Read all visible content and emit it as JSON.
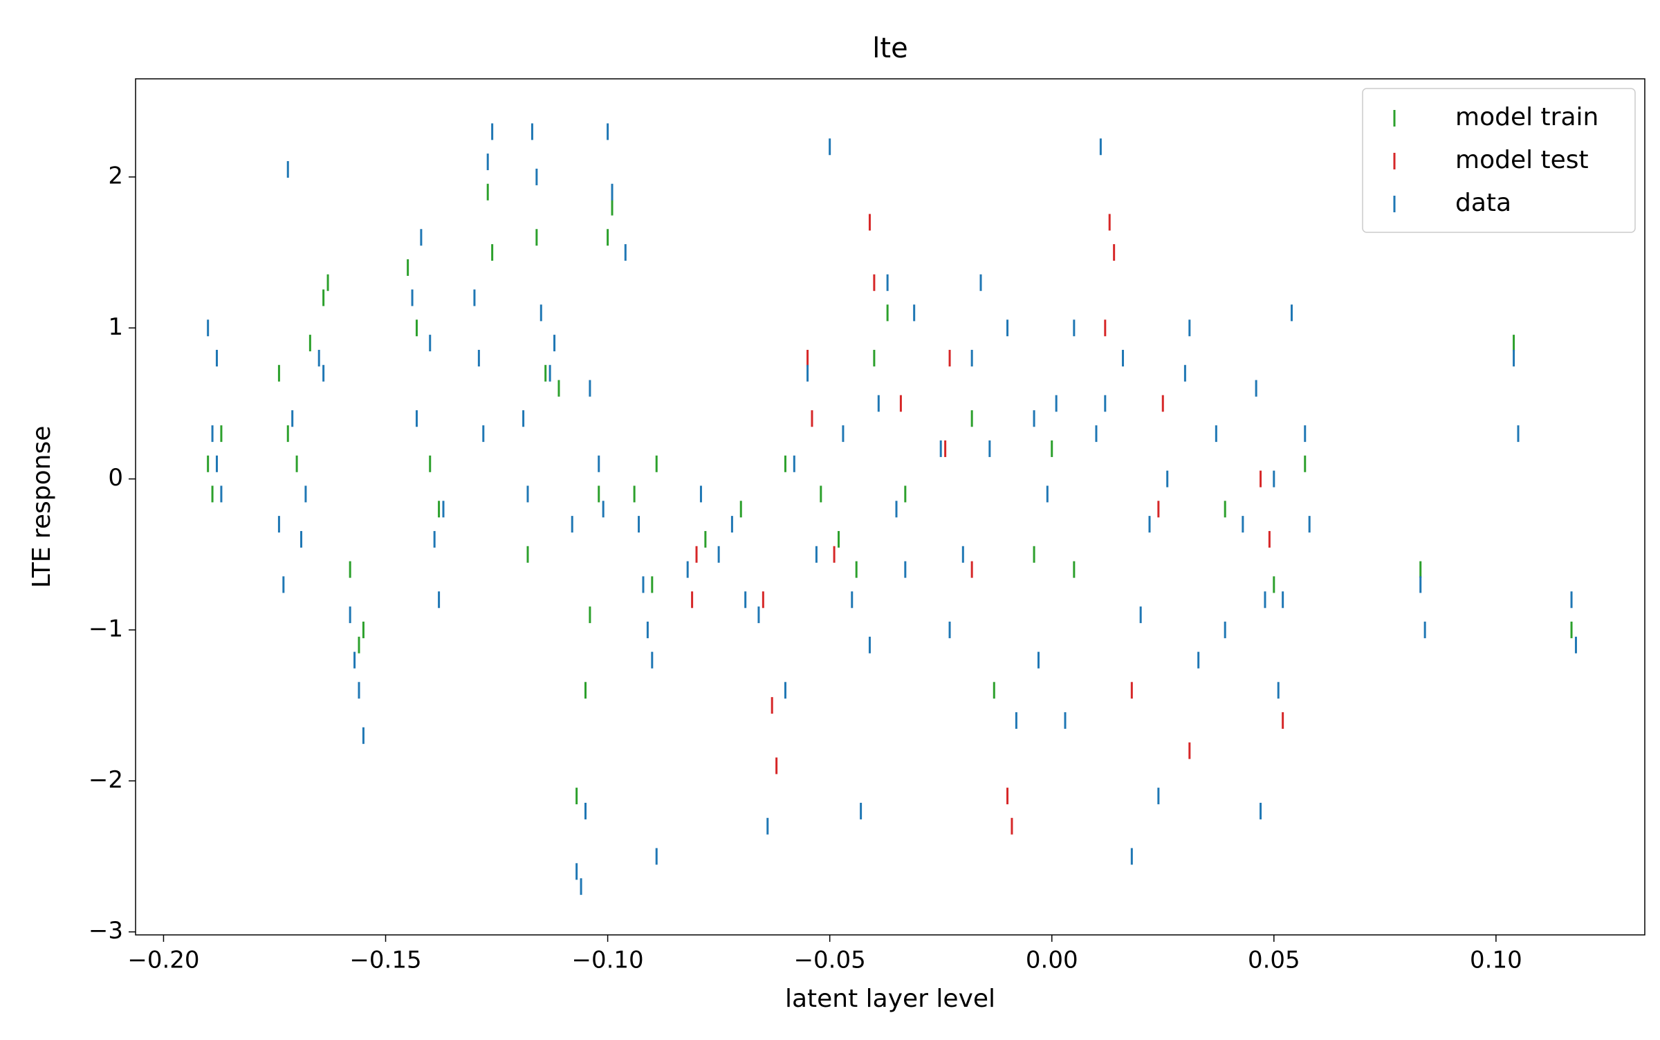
{
  "chart_data": {
    "type": "scatter",
    "title": "lte",
    "x_label": "latent layer level",
    "y_label": "LTE response",
    "xlim": [
      -0.2063,
      0.1335
    ],
    "ylim": [
      -3.02,
      2.65
    ],
    "xticks": [
      {
        "value": -0.2,
        "label": "−0.20"
      },
      {
        "value": -0.15,
        "label": "−0.15"
      },
      {
        "value": -0.1,
        "label": "−0.10"
      },
      {
        "value": -0.05,
        "label": "−0.05"
      },
      {
        "value": 0,
        "label": "0.00"
      },
      {
        "value": 0.05,
        "label": "0.05"
      },
      {
        "value": 0.1,
        "label": "0.10"
      }
    ],
    "yticks": [
      {
        "value": -3,
        "label": "−3"
      },
      {
        "value": -2,
        "label": "−2"
      },
      {
        "value": -1,
        "label": "−1"
      },
      0,
      1,
      2
    ],
    "marker": "vline",
    "legend": "upper right",
    "series": [
      {
        "name": "model train",
        "color": "#2ca02c",
        "x": [
          -0.19,
          -0.189,
          -0.187,
          -0.174,
          -0.172,
          -0.17,
          -0.167,
          -0.164,
          -0.163,
          -0.158,
          -0.156,
          -0.155,
          -0.145,
          -0.143,
          -0.14,
          -0.138,
          -0.127,
          -0.126,
          -0.118,
          -0.116,
          -0.114,
          -0.111,
          -0.107,
          -0.105,
          -0.104,
          -0.102,
          -0.1,
          -0.099,
          -0.094,
          -0.09,
          -0.089,
          -0.078,
          -0.07,
          -0.06,
          -0.052,
          -0.048,
          -0.044,
          -0.04,
          -0.037,
          -0.033,
          -0.018,
          -0.013,
          -0.004,
          0.0,
          0.005,
          0.039,
          0.05,
          0.057,
          0.083,
          0.104,
          0.117
        ],
        "values": [
          0.1,
          -0.1,
          0.3,
          0.7,
          0.3,
          0.1,
          0.9,
          1.2,
          1.3,
          -0.6,
          -1.1,
          -1.0,
          1.4,
          1.0,
          0.1,
          -0.2,
          1.9,
          1.5,
          -0.5,
          1.6,
          0.7,
          0.6,
          -2.1,
          -1.4,
          -0.9,
          -0.1,
          1.6,
          1.8,
          -0.1,
          -0.7,
          0.1,
          -0.4,
          -0.2,
          0.1,
          -0.1,
          -0.4,
          -0.6,
          0.8,
          1.1,
          -0.1,
          0.4,
          -1.4,
          -0.5,
          0.2,
          -0.6,
          -0.2,
          -0.7,
          0.1,
          -0.6,
          0.9,
          -1.0
        ]
      },
      {
        "name": "model test",
        "color": "#d62728",
        "x": [
          -0.081,
          -0.08,
          -0.065,
          -0.063,
          -0.062,
          -0.055,
          -0.054,
          -0.049,
          -0.041,
          -0.04,
          -0.034,
          -0.024,
          -0.023,
          -0.018,
          -0.01,
          -0.009,
          0.012,
          0.013,
          0.014,
          0.018,
          0.024,
          0.025,
          0.031,
          0.047,
          0.049,
          0.052
        ],
        "values": [
          -0.8,
          -0.5,
          -0.8,
          -1.5,
          -1.9,
          0.8,
          0.4,
          -0.5,
          1.7,
          1.3,
          0.5,
          0.2,
          0.8,
          -0.6,
          -2.1,
          -2.3,
          1.0,
          1.7,
          1.5,
          -1.4,
          -0.2,
          0.5,
          -1.8,
          0.0,
          -0.4,
          -1.6
        ]
      },
      {
        "name": "data",
        "color": "#1f77b4",
        "x": [
          -0.19,
          -0.189,
          -0.188,
          -0.188,
          -0.187,
          -0.172,
          -0.174,
          -0.173,
          -0.171,
          -0.169,
          -0.168,
          -0.165,
          -0.164,
          -0.158,
          -0.157,
          -0.156,
          -0.155,
          -0.144,
          -0.143,
          -0.142,
          -0.14,
          -0.139,
          -0.138,
          -0.137,
          -0.13,
          -0.129,
          -0.128,
          -0.127,
          -0.126,
          -0.119,
          -0.118,
          -0.117,
          -0.116,
          -0.115,
          -0.113,
          -0.112,
          -0.108,
          -0.107,
          -0.106,
          -0.105,
          -0.104,
          -0.102,
          -0.101,
          -0.1,
          -0.099,
          -0.096,
          -0.093,
          -0.092,
          -0.091,
          -0.09,
          -0.089,
          -0.082,
          -0.079,
          -0.075,
          -0.072,
          -0.069,
          -0.066,
          -0.064,
          -0.06,
          -0.058,
          -0.055,
          -0.053,
          -0.05,
          -0.047,
          -0.045,
          -0.043,
          -0.041,
          -0.039,
          -0.037,
          -0.035,
          -0.033,
          -0.031,
          -0.025,
          -0.023,
          -0.02,
          -0.018,
          -0.016,
          -0.014,
          -0.01,
          -0.008,
          -0.004,
          -0.003,
          -0.001,
          0.001,
          0.003,
          0.005,
          0.01,
          0.011,
          0.012,
          0.016,
          0.018,
          0.02,
          0.022,
          0.024,
          0.026,
          0.03,
          0.031,
          0.033,
          0.037,
          0.039,
          0.043,
          0.046,
          0.047,
          0.048,
          0.05,
          0.051,
          0.052,
          0.054,
          0.057,
          0.058,
          0.083,
          0.084,
          0.104,
          0.105,
          0.117,
          0.118
        ],
        "values": [
          1.0,
          0.3,
          0.1,
          0.8,
          -0.1,
          2.05,
          -0.3,
          -0.7,
          0.4,
          -0.4,
          -0.1,
          0.8,
          0.7,
          -0.9,
          -1.2,
          -1.4,
          -1.7,
          1.2,
          0.4,
          1.6,
          0.9,
          -0.4,
          -0.8,
          -0.2,
          1.2,
          0.8,
          0.3,
          2.1,
          2.3,
          0.4,
          -0.1,
          2.3,
          2.0,
          1.1,
          0.7,
          0.9,
          -0.3,
          -2.6,
          -2.7,
          -2.2,
          0.6,
          0.1,
          -0.2,
          2.3,
          1.9,
          1.5,
          -0.3,
          -0.7,
          -1.0,
          -1.2,
          -2.5,
          -0.6,
          -0.1,
          -0.5,
          -0.3,
          -0.8,
          -0.9,
          -2.3,
          -1.4,
          0.1,
          0.7,
          -0.5,
          2.2,
          0.3,
          -0.8,
          -2.2,
          -1.1,
          0.5,
          1.3,
          -0.2,
          -0.6,
          1.1,
          0.2,
          -1.0,
          -0.5,
          0.8,
          1.3,
          0.2,
          1.0,
          -1.6,
          0.4,
          -1.2,
          -0.1,
          0.5,
          -1.6,
          1.0,
          0.3,
          2.2,
          0.5,
          0.8,
          -2.5,
          -0.9,
          -0.3,
          -2.1,
          0.0,
          0.7,
          1.0,
          -1.2,
          0.3,
          -1.0,
          -0.3,
          0.6,
          -2.2,
          -0.8,
          0.0,
          -1.4,
          -0.8,
          1.1,
          0.3,
          -0.3,
          -0.7,
          -1.0,
          0.8,
          0.3,
          -0.8,
          -1.1
        ]
      }
    ]
  }
}
